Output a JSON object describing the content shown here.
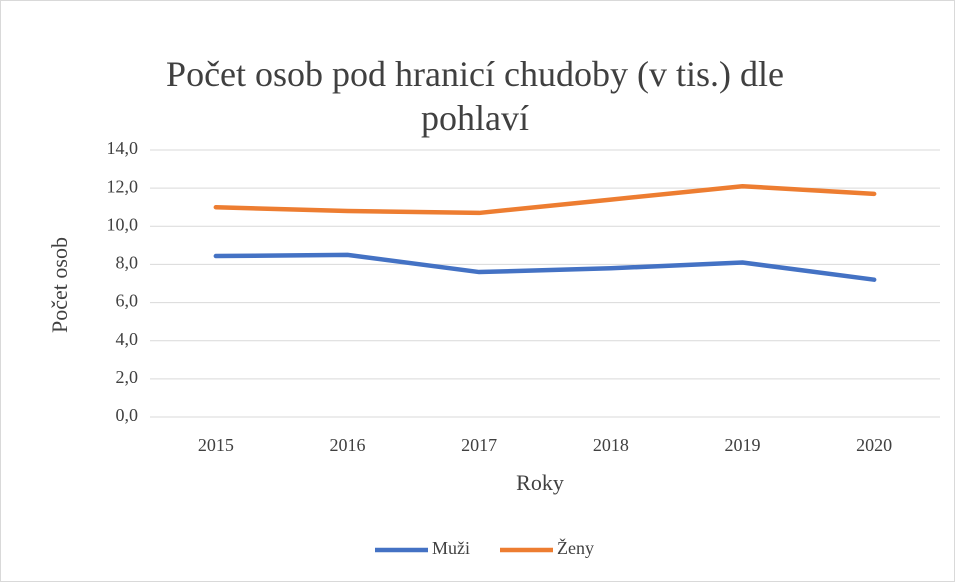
{
  "chart_data": {
    "type": "line",
    "title": "Počet osob pod hranicí chudoby (v tis.) dle pohlaví",
    "x_label": "Roky",
    "y_label": "Počet osob",
    "categories": [
      "2015",
      "2016",
      "2017",
      "2018",
      "2019",
      "2020"
    ],
    "series": [
      {
        "name": "Muži",
        "color": "#4472c4",
        "values": [
          8.44,
          8.5,
          7.6,
          7.8,
          8.1,
          7.2
        ]
      },
      {
        "name": "Ženy",
        "color": "#ed7d31",
        "values": [
          11.0,
          10.8,
          10.7,
          11.4,
          12.1,
          11.7
        ]
      }
    ],
    "ylim": [
      0,
      14
    ],
    "yticks": [
      {
        "value": 0,
        "label": "0,0"
      },
      {
        "value": 2,
        "label": "2,0"
      },
      {
        "value": 4,
        "label": "4,0"
      },
      {
        "value": 6,
        "label": "6,0"
      },
      {
        "value": 8,
        "label": "8,0"
      },
      {
        "value": 10,
        "label": "10,0"
      },
      {
        "value": 12,
        "label": "12,0"
      },
      {
        "value": 14,
        "label": "14,0"
      }
    ],
    "grid": true,
    "legend": "bottom"
  }
}
